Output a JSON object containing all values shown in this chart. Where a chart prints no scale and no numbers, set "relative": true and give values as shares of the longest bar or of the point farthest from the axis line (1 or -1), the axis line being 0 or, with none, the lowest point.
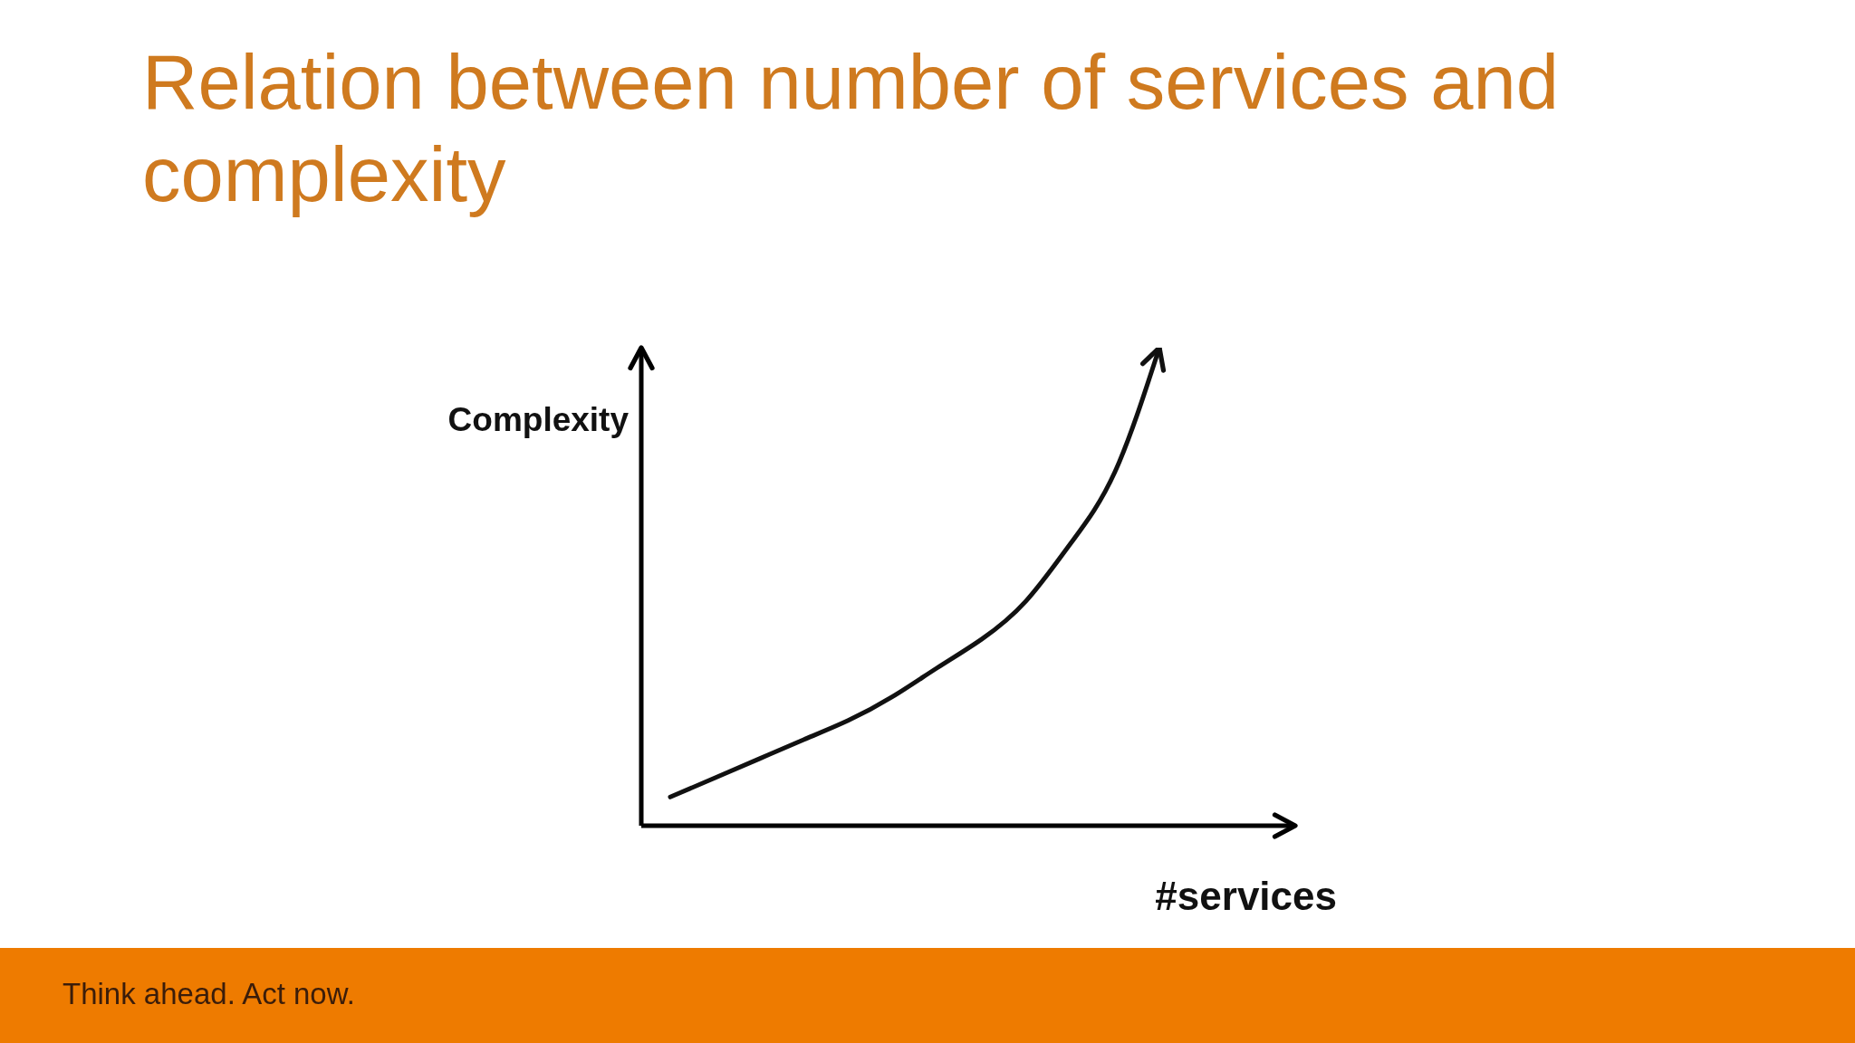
{
  "chart_data": {
    "type": "line",
    "title": "Relation between number of services and complexity",
    "xlabel": "#services",
    "ylabel": "Complexity",
    "annotations": [
      "Think ahead. Act now."
    ],
    "categories": [
      null,
      null,
      null,
      null,
      null,
      null,
      null,
      null,
      null,
      null,
      null,
      null
    ],
    "relative": true,
    "line_style": "solid",
    "series": [
      {
        "color": "#111111",
        "values": [
          0.06,
          0.1,
          0.14,
          0.18,
          0.22,
          0.27,
          0.33,
          0.39,
          0.47,
          0.59,
          0.74,
          1
        ]
      }
    ]
  }
}
